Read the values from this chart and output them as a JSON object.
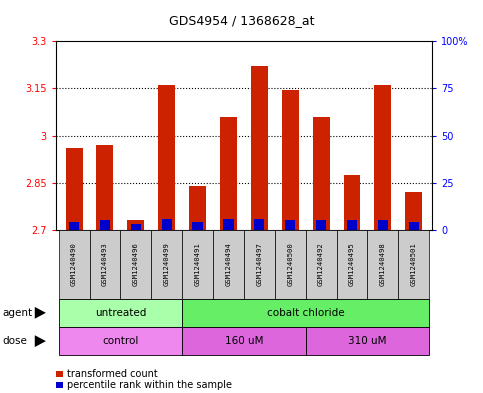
{
  "title": "GDS4954 / 1368628_at",
  "samples": [
    "GSM1240490",
    "GSM1240493",
    "GSM1240496",
    "GSM1240499",
    "GSM1240491",
    "GSM1240494",
    "GSM1240497",
    "GSM1240500",
    "GSM1240492",
    "GSM1240495",
    "GSM1240498",
    "GSM1240501"
  ],
  "transformed_count": [
    2.96,
    2.97,
    2.73,
    3.16,
    2.84,
    3.06,
    3.22,
    3.145,
    3.06,
    2.875,
    3.16,
    2.82
  ],
  "percentile_rank": [
    4,
    5,
    3,
    6,
    4,
    6,
    6,
    5,
    5,
    5,
    5,
    4
  ],
  "base_value": 2.7,
  "ylim_left": [
    2.7,
    3.3
  ],
  "ylim_right": [
    0,
    100
  ],
  "yticks_left": [
    2.7,
    2.85,
    3.0,
    3.15,
    3.3
  ],
  "ytick_labels_left": [
    "2.7",
    "2.85",
    "3",
    "3.15",
    "3.3"
  ],
  "yticks_right": [
    0,
    25,
    50,
    75,
    100
  ],
  "ytick_labels_right": [
    "0",
    "25",
    "50",
    "75",
    "100%"
  ],
  "hlines": [
    2.85,
    3.0,
    3.15
  ],
  "bar_color": "#cc2200",
  "percentile_color": "#0000cc",
  "agent_groups": [
    {
      "label": "untreated",
      "start": 0,
      "end": 4,
      "color": "#aaffaa"
    },
    {
      "label": "cobalt chloride",
      "start": 4,
      "end": 12,
      "color": "#66ee66"
    }
  ],
  "dose_groups": [
    {
      "label": "control",
      "start": 0,
      "end": 4,
      "color": "#ee88ee"
    },
    {
      "label": "160 uM",
      "start": 4,
      "end": 8,
      "color": "#dd66dd"
    },
    {
      "label": "310 uM",
      "start": 8,
      "end": 12,
      "color": "#dd66dd"
    }
  ],
  "agent_label": "agent",
  "dose_label": "dose",
  "legend_items": [
    {
      "label": "transformed count",
      "color": "#cc2200"
    },
    {
      "label": "percentile rank within the sample",
      "color": "#0000cc"
    }
  ],
  "tick_label_area_bg": "#cccccc",
  "fig_width": 4.83,
  "fig_height": 3.93,
  "dpi": 100
}
